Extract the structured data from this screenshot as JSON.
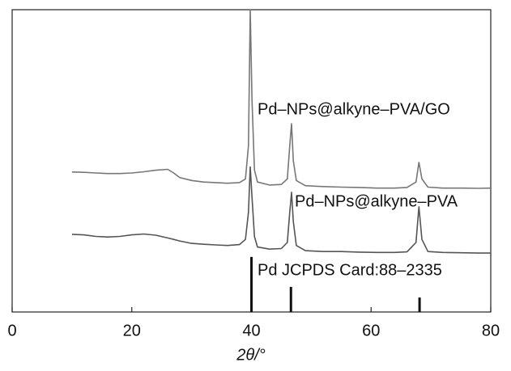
{
  "chart_data": {
    "type": "line",
    "x_label": "2θ/°",
    "xlim": [
      0,
      80
    ],
    "xticks": [
      0,
      20,
      40,
      60,
      80
    ],
    "ylim": [
      0,
      100
    ],
    "x": [
      10,
      12,
      14,
      16,
      18,
      20,
      22,
      24,
      26,
      27,
      28,
      30,
      32,
      34,
      36,
      38,
      39,
      39.5,
      39.8,
      40.1,
      40.5,
      41,
      43,
      45,
      46,
      46.4,
      46.7,
      47,
      47.5,
      49,
      52,
      55,
      58,
      61,
      64,
      66,
      67.5,
      68,
      68.5,
      69.5,
      72,
      75,
      78,
      80
    ],
    "series": [
      {
        "name": "Pd–NPs@alkyne–PVA/GO",
        "color": "#777777",
        "values": [
          46.3,
          46.2,
          46.0,
          45.8,
          45.8,
          46,
          46.4,
          46.9,
          47.2,
          46,
          44.5,
          43.5,
          43,
          42.8,
          42.6,
          42.8,
          44,
          55,
          100,
          70,
          47,
          43,
          42,
          42.2,
          44,
          55,
          62.3,
          50,
          43.5,
          41.8,
          41.5,
          41.3,
          41.2,
          41,
          41,
          41.2,
          43,
          49.5,
          44,
          41.3,
          41,
          41,
          40.9,
          41
        ]
      },
      {
        "name": "Pd–NPs@alkyne–PVA",
        "color": "#555555",
        "values": [
          25.7,
          25.5,
          25,
          24.8,
          25,
          25.5,
          25.8,
          25.4,
          24.5,
          24,
          23.5,
          22.7,
          22.4,
          22.2,
          22,
          22.3,
          24,
          33,
          48,
          38,
          25,
          21.5,
          20.8,
          21,
          23,
          33,
          39.6,
          30,
          22,
          20.3,
          20,
          20,
          19.8,
          19.7,
          19.7,
          19.9,
          23,
          34.8,
          24,
          20,
          19.7,
          19.6,
          19.5,
          19.5
        ]
      }
    ],
    "reference": {
      "name": "Pd JCPDS Card:88–2335",
      "color": "#111111",
      "positions": [
        40,
        46.6,
        68.1
      ],
      "values": [
        18.2,
        8.3,
        4.8
      ]
    }
  }
}
